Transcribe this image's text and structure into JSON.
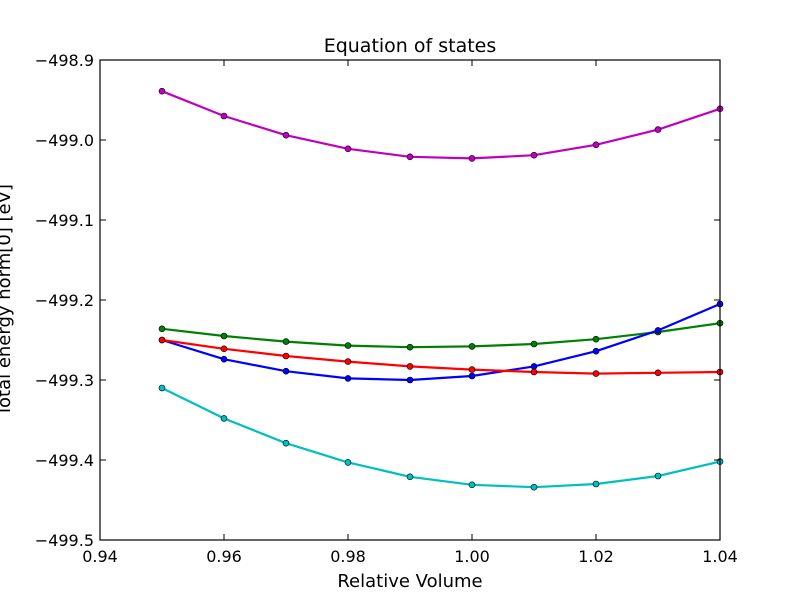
{
  "chart_data": {
    "type": "line",
    "title": "Equation of states",
    "xlabel": "Relative Volume",
    "ylabel": "Total energy norm[0] [eV]",
    "xlim": [
      0.94,
      1.04
    ],
    "ylim": [
      -499.5,
      -498.9
    ],
    "xticks": [
      "0.94",
      "0.96",
      "0.98",
      "1.00",
      "1.02",
      "1.04"
    ],
    "yticks": [
      "−499.5",
      "−499.4",
      "−499.3",
      "−499.2",
      "−499.1",
      "−499.0",
      "−498.9"
    ],
    "grid": false,
    "legend": "none",
    "x": [
      0.95,
      0.96,
      0.97,
      0.98,
      0.99,
      1.0,
      1.01,
      1.02,
      1.03,
      1.04
    ],
    "series": [
      {
        "color": "#bf00bf",
        "values": [
          -498.939,
          -498.97,
          -498.994,
          -499.011,
          -499.021,
          -499.023,
          -499.019,
          -499.006,
          -498.987,
          -498.961
        ]
      },
      {
        "color": "#008000",
        "values": [
          -499.236,
          -499.245,
          -499.252,
          -499.257,
          -499.259,
          -499.258,
          -499.255,
          -499.249,
          -499.24,
          -499.229
        ]
      },
      {
        "color": "#0000ff",
        "values": [
          -499.25,
          -499.274,
          -499.289,
          -499.298,
          -499.3,
          -499.295,
          -499.283,
          -499.264,
          -499.238,
          -499.205
        ]
      },
      {
        "color": "#ff0000",
        "values": [
          -499.25,
          -499.261,
          -499.27,
          -499.277,
          -499.283,
          -499.287,
          -499.29,
          -499.292,
          -499.291,
          -499.29
        ]
      },
      {
        "color": "#00bfbf",
        "values": [
          -499.31,
          -499.348,
          -499.379,
          -499.403,
          -499.421,
          -499.431,
          -499.434,
          -499.43,
          -499.42,
          -499.402
        ]
      }
    ]
  }
}
